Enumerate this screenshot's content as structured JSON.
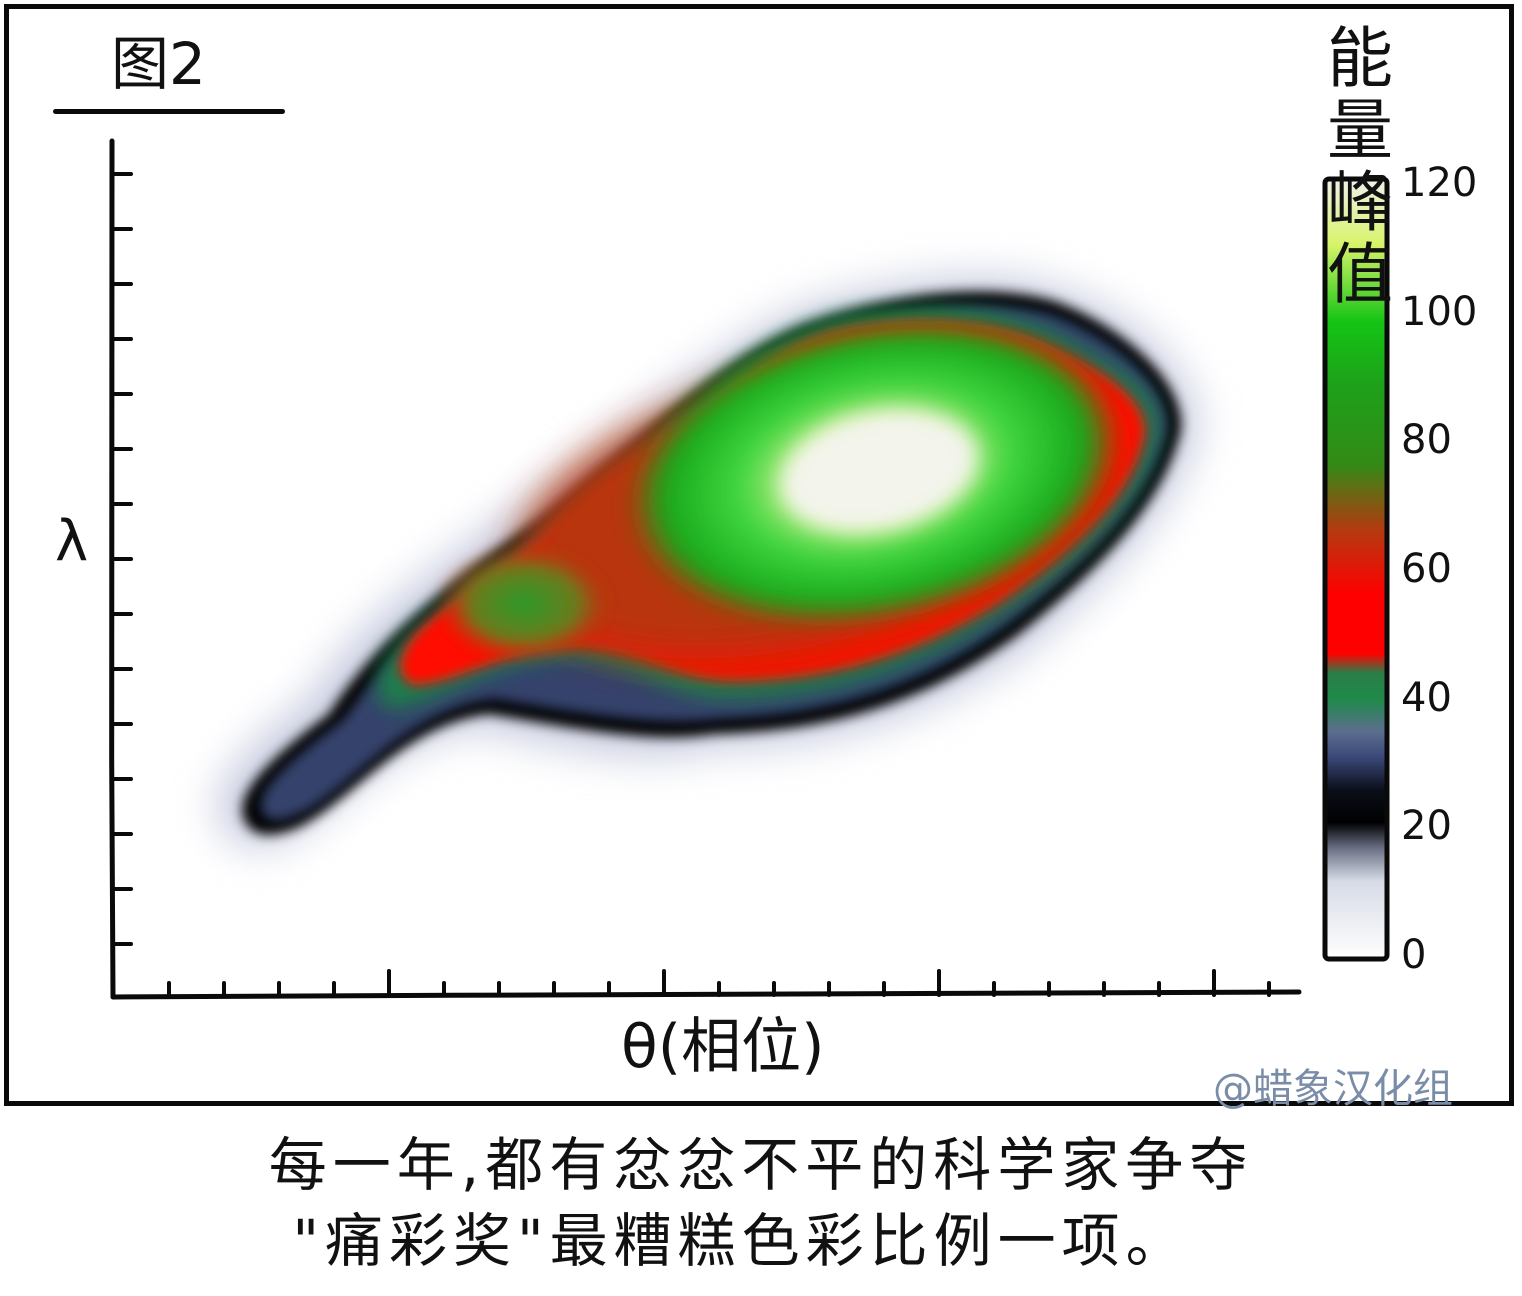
{
  "figure_label": "图2",
  "caption": {
    "line1": "每一年,都有忿忿不平的科学家争夺",
    "line2": "\"痛彩奖\"最糟糕色彩比例一项。"
  },
  "watermark": "@蜡象汉化组",
  "colors": {
    "frame": "#0a0a0a",
    "background": "#ffffff",
    "watermark": "#7a8da8"
  },
  "chart_data": {
    "type": "heatmap",
    "title": "图2",
    "xlabel": "θ(相位)",
    "ylabel": "λ",
    "x_tick_labels": [],
    "y_tick_labels": [],
    "grid": false,
    "colorbar": {
      "title_line1": "能 量",
      "title_line2": "峰 值",
      "placement": "right",
      "range": [
        0,
        120
      ],
      "ticks": [
        "0",
        "20",
        "40",
        "60",
        "80",
        "100",
        "120"
      ],
      "colorscale": [
        {
          "value": 0,
          "color": "#ffffff"
        },
        {
          "value": 12,
          "color": "#d7dbe6"
        },
        {
          "value": 17,
          "color": "#6b7186"
        },
        {
          "value": 21,
          "color": "#000000"
        },
        {
          "value": 26,
          "color": "#0b0f1a"
        },
        {
          "value": 31,
          "color": "#3a4878"
        },
        {
          "value": 35,
          "color": "#5c6e8e"
        },
        {
          "value": 40,
          "color": "#1f8a4a"
        },
        {
          "value": 44,
          "color": "#2a7d48"
        },
        {
          "value": 47,
          "color": "#ff0000"
        },
        {
          "value": 56,
          "color": "#ff0000"
        },
        {
          "value": 66,
          "color": "#b43a10"
        },
        {
          "value": 76,
          "color": "#338a16"
        },
        {
          "value": 88,
          "color": "#1ea01a"
        },
        {
          "value": 98,
          "color": "#14c414"
        },
        {
          "value": 110,
          "color": "#d8f46a"
        },
        {
          "value": 120,
          "color": "#f1f1ea"
        }
      ]
    },
    "regions": [
      {
        "level": 20,
        "description": "outer black outline of the blob"
      },
      {
        "level": 35,
        "description": "navy tail extending to lower-left"
      },
      {
        "level": 55,
        "description": "red band surrounding the core"
      },
      {
        "level": 85,
        "description": "green core and secondary green spot"
      },
      {
        "level": 120,
        "description": "pale yellow-white peak"
      }
    ]
  }
}
